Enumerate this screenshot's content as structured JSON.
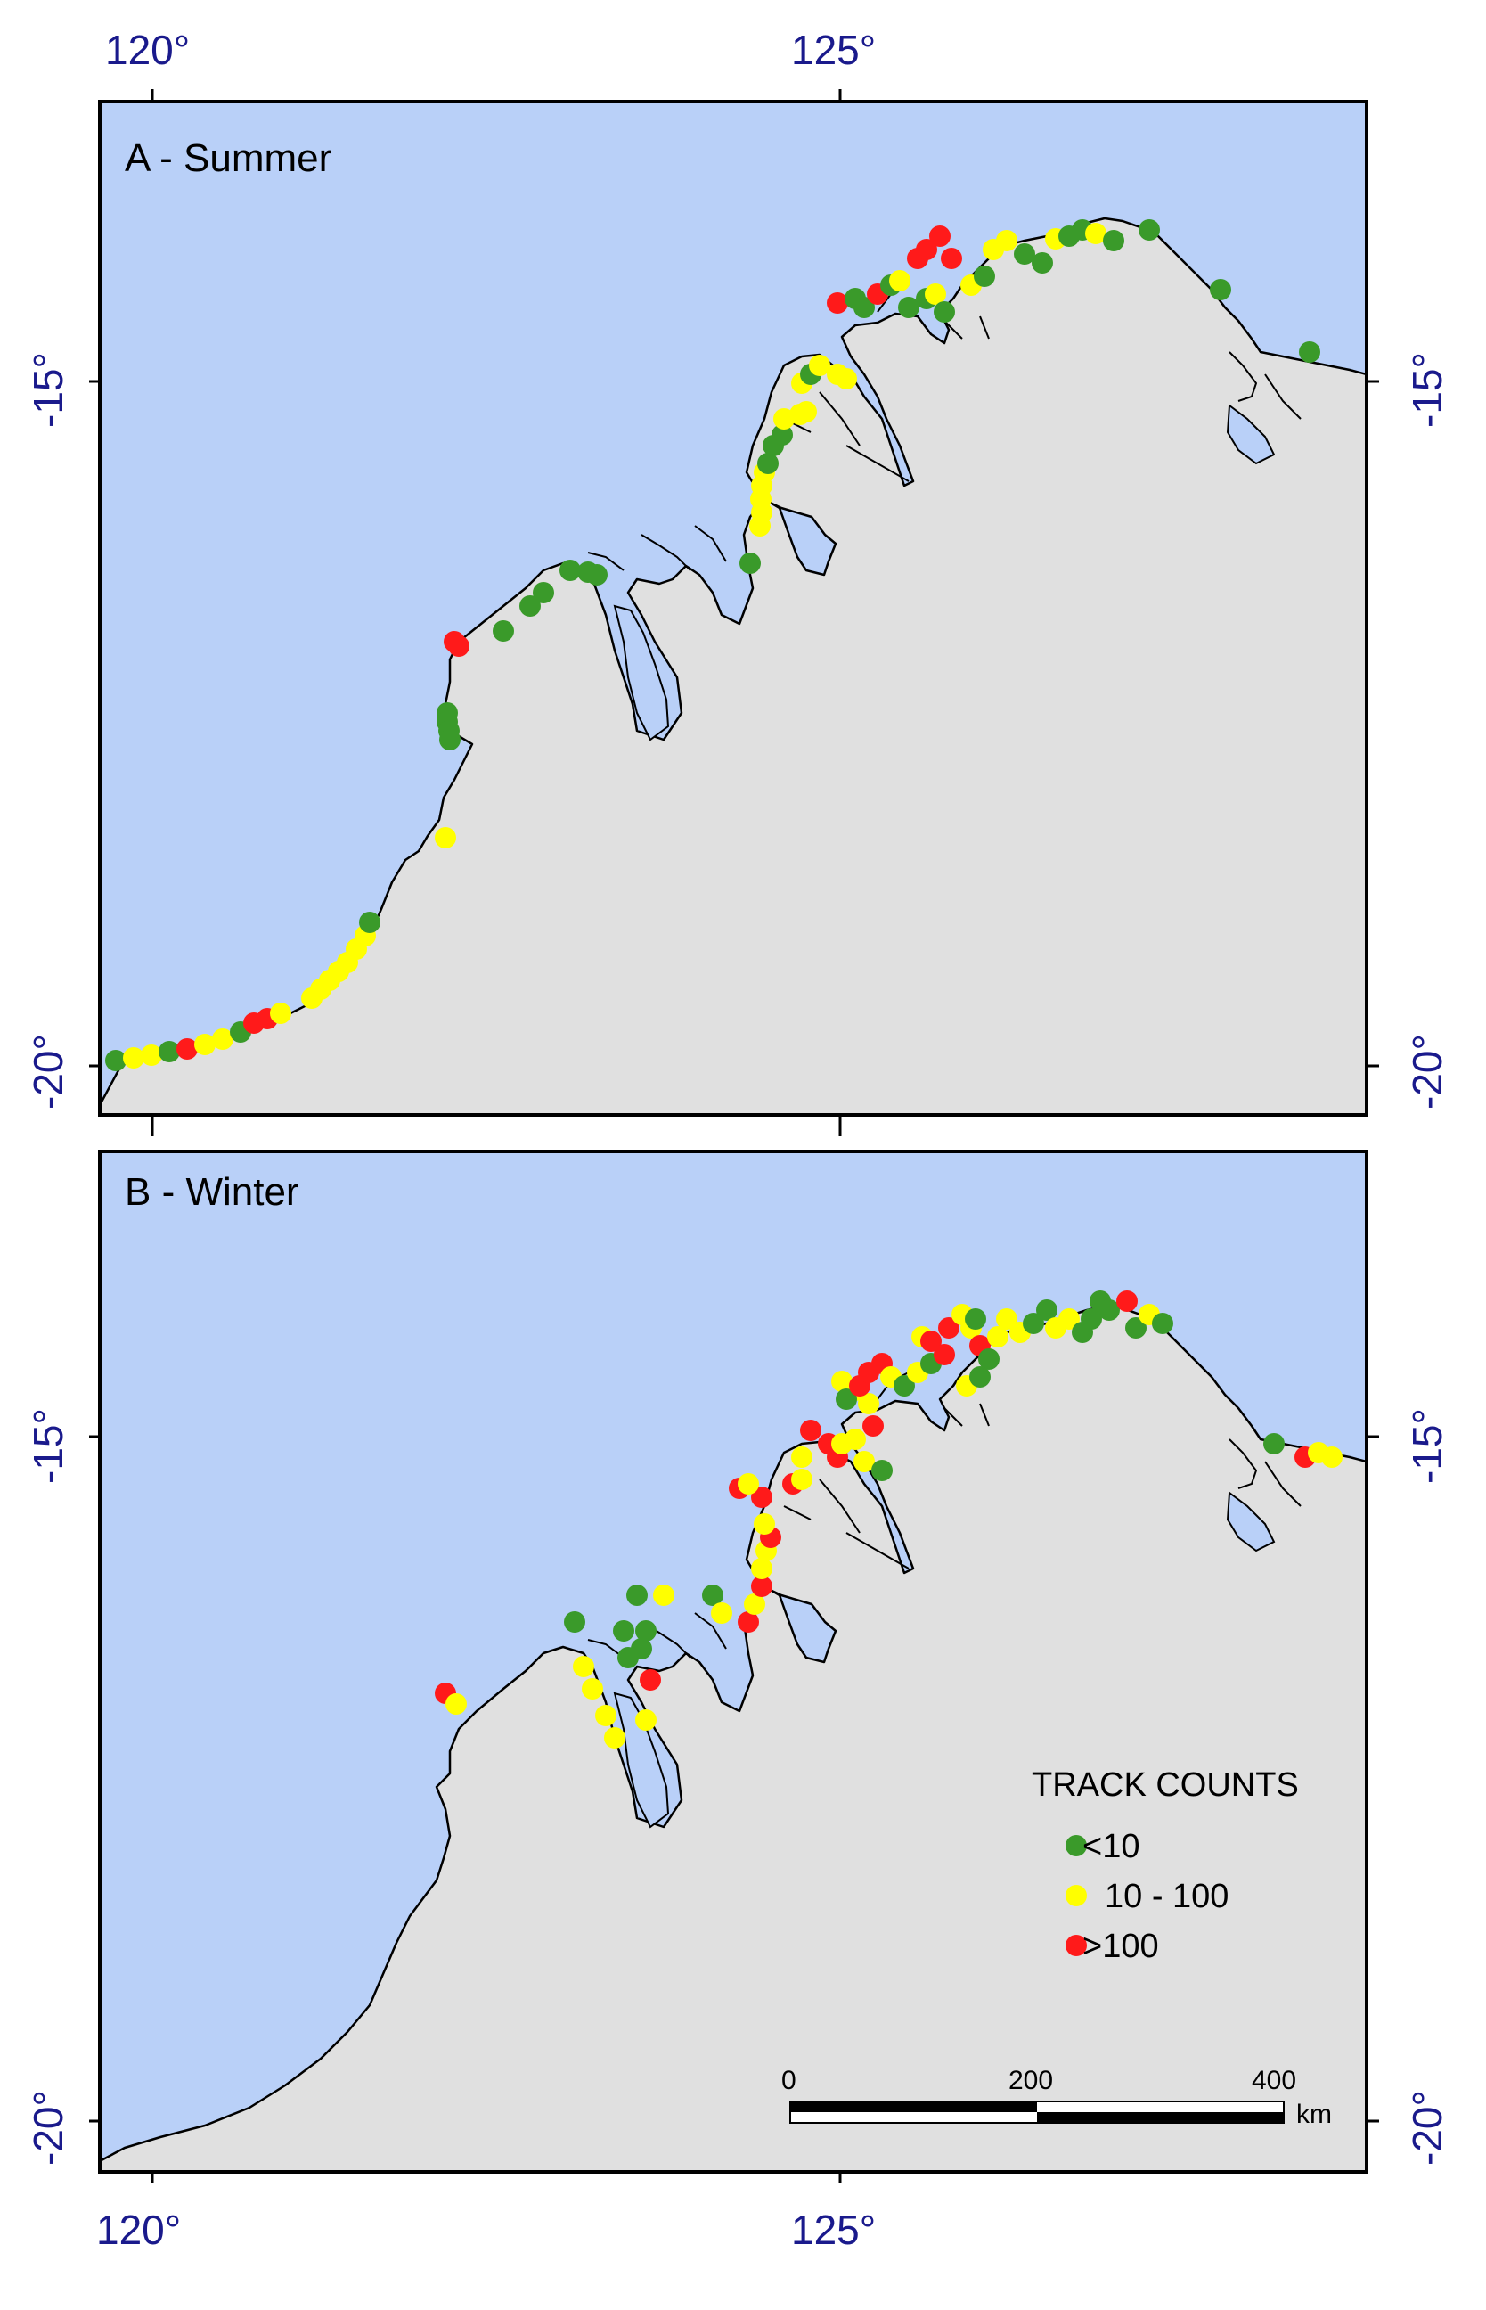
{
  "colors": {
    "sea": "#b9d0f8",
    "land": "#e0e0e0",
    "low": "#3a9a2a",
    "mid": "#ffff00",
    "high": "#ff1a1a",
    "axis": "#1a1a8c"
  },
  "axes": {
    "lon_labels": [
      "120°",
      "125°"
    ],
    "lat_labels": [
      "-15°",
      "-20°"
    ]
  },
  "panels": {
    "summer": {
      "label": "A - Summer"
    },
    "winter": {
      "label": "B - Winter"
    }
  },
  "legend": {
    "title": "TRACK COUNTS",
    "items": [
      {
        "label": "<10",
        "color_key": "low"
      },
      {
        "label": "10 - 100",
        "color_key": "mid"
      },
      {
        "label": ">100",
        "color_key": "high"
      }
    ]
  },
  "scale_bar": {
    "ticks": [
      "0",
      "200",
      "400"
    ],
    "unit": "km"
  }
}
